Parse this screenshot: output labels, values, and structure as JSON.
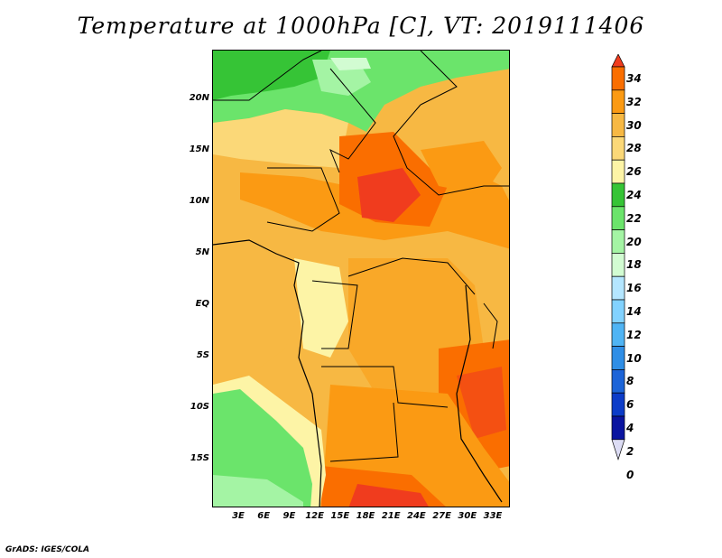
{
  "title": "Temperature at 1000hPa [C], VT: 2019111406",
  "credit": "GrADS: IGES/COLA",
  "map": {
    "lat_ticks": [
      "20N",
      "15N",
      "10N",
      "5N",
      "EQ",
      "5S",
      "10S",
      "15S"
    ],
    "lon_ticks": [
      "3E",
      "6E",
      "9E",
      "12E",
      "15E",
      "18E",
      "21E",
      "24E",
      "27E",
      "30E",
      "33E"
    ]
  },
  "colorbar": {
    "labels": [
      "34",
      "32",
      "30",
      "28",
      "26",
      "24",
      "22",
      "20",
      "18",
      "16",
      "14",
      "12",
      "10",
      "8",
      "6",
      "4",
      "2",
      "0"
    ],
    "colors": [
      "#f03c1e",
      "#fa6e00",
      "#fb9a13",
      "#f7b843",
      "#fbd878",
      "#fdf4a6",
      "#36c436",
      "#6be46b",
      "#a4f4a4",
      "#d2fcd2",
      "#b4e6ff",
      "#82d2ff",
      "#4fb4f4",
      "#2f8ee6",
      "#1c64d8",
      "#0c3cc8",
      "#0a14a0",
      "#dcdcf4"
    ]
  }
}
